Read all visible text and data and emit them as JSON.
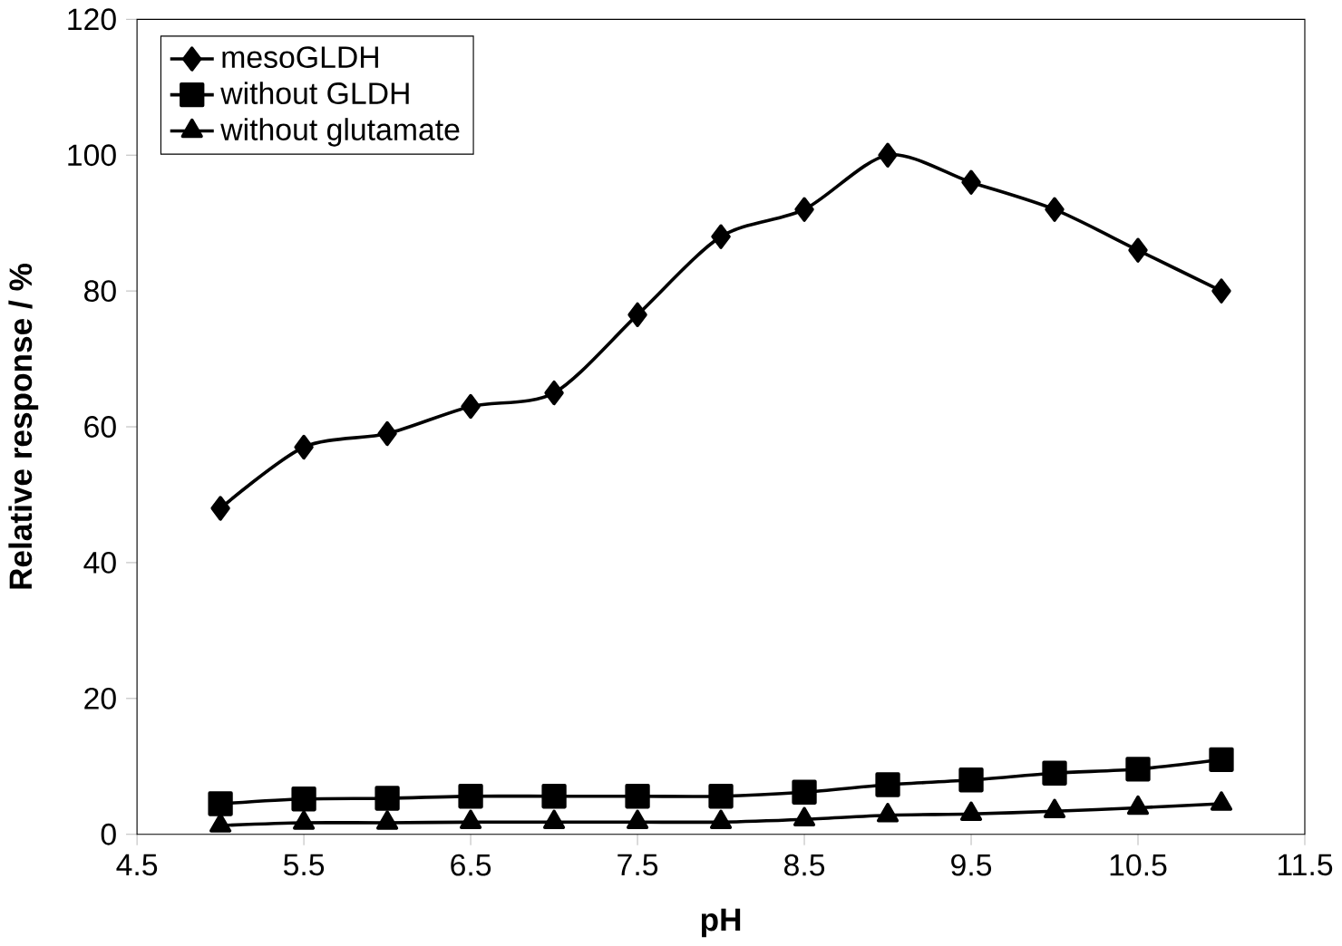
{
  "chart_data": {
    "type": "line",
    "xlabel": "pH",
    "ylabel": "Relative response / %",
    "x": [
      5,
      5.5,
      6,
      6.5,
      7,
      7.5,
      8,
      8.5,
      9,
      9.5,
      10,
      10.5,
      11
    ],
    "series": [
      {
        "name": "mesoGLDH",
        "color": "#000000",
        "marker": "diamond",
        "values": [
          48,
          57,
          59,
          63,
          65,
          76.5,
          88,
          92,
          100,
          96,
          92,
          86,
          80
        ]
      },
      {
        "name": "without GLDH",
        "color": "#000000",
        "marker": "square",
        "values": [
          4.5,
          5.2,
          5.3,
          5.6,
          5.6,
          5.6,
          5.6,
          6.2,
          7.3,
          8,
          9,
          9.6,
          11
        ]
      },
      {
        "name": "without glutamate",
        "color": "#000000",
        "marker": "triangle",
        "values": [
          1.3,
          1.7,
          1.7,
          1.8,
          1.8,
          1.8,
          1.8,
          2.2,
          2.8,
          3,
          3.4,
          3.9,
          4.5
        ]
      }
    ],
    "xlim": [
      4.5,
      11.5
    ],
    "xticks": [
      4.5,
      5.5,
      6.5,
      7.5,
      8.5,
      9.5,
      10.5,
      11.5
    ],
    "ylim": [
      0,
      120
    ],
    "yticks": [
      0,
      20,
      40,
      60,
      80,
      100,
      120
    ],
    "grid": false,
    "legend": "top left",
    "line_style": "solid"
  }
}
